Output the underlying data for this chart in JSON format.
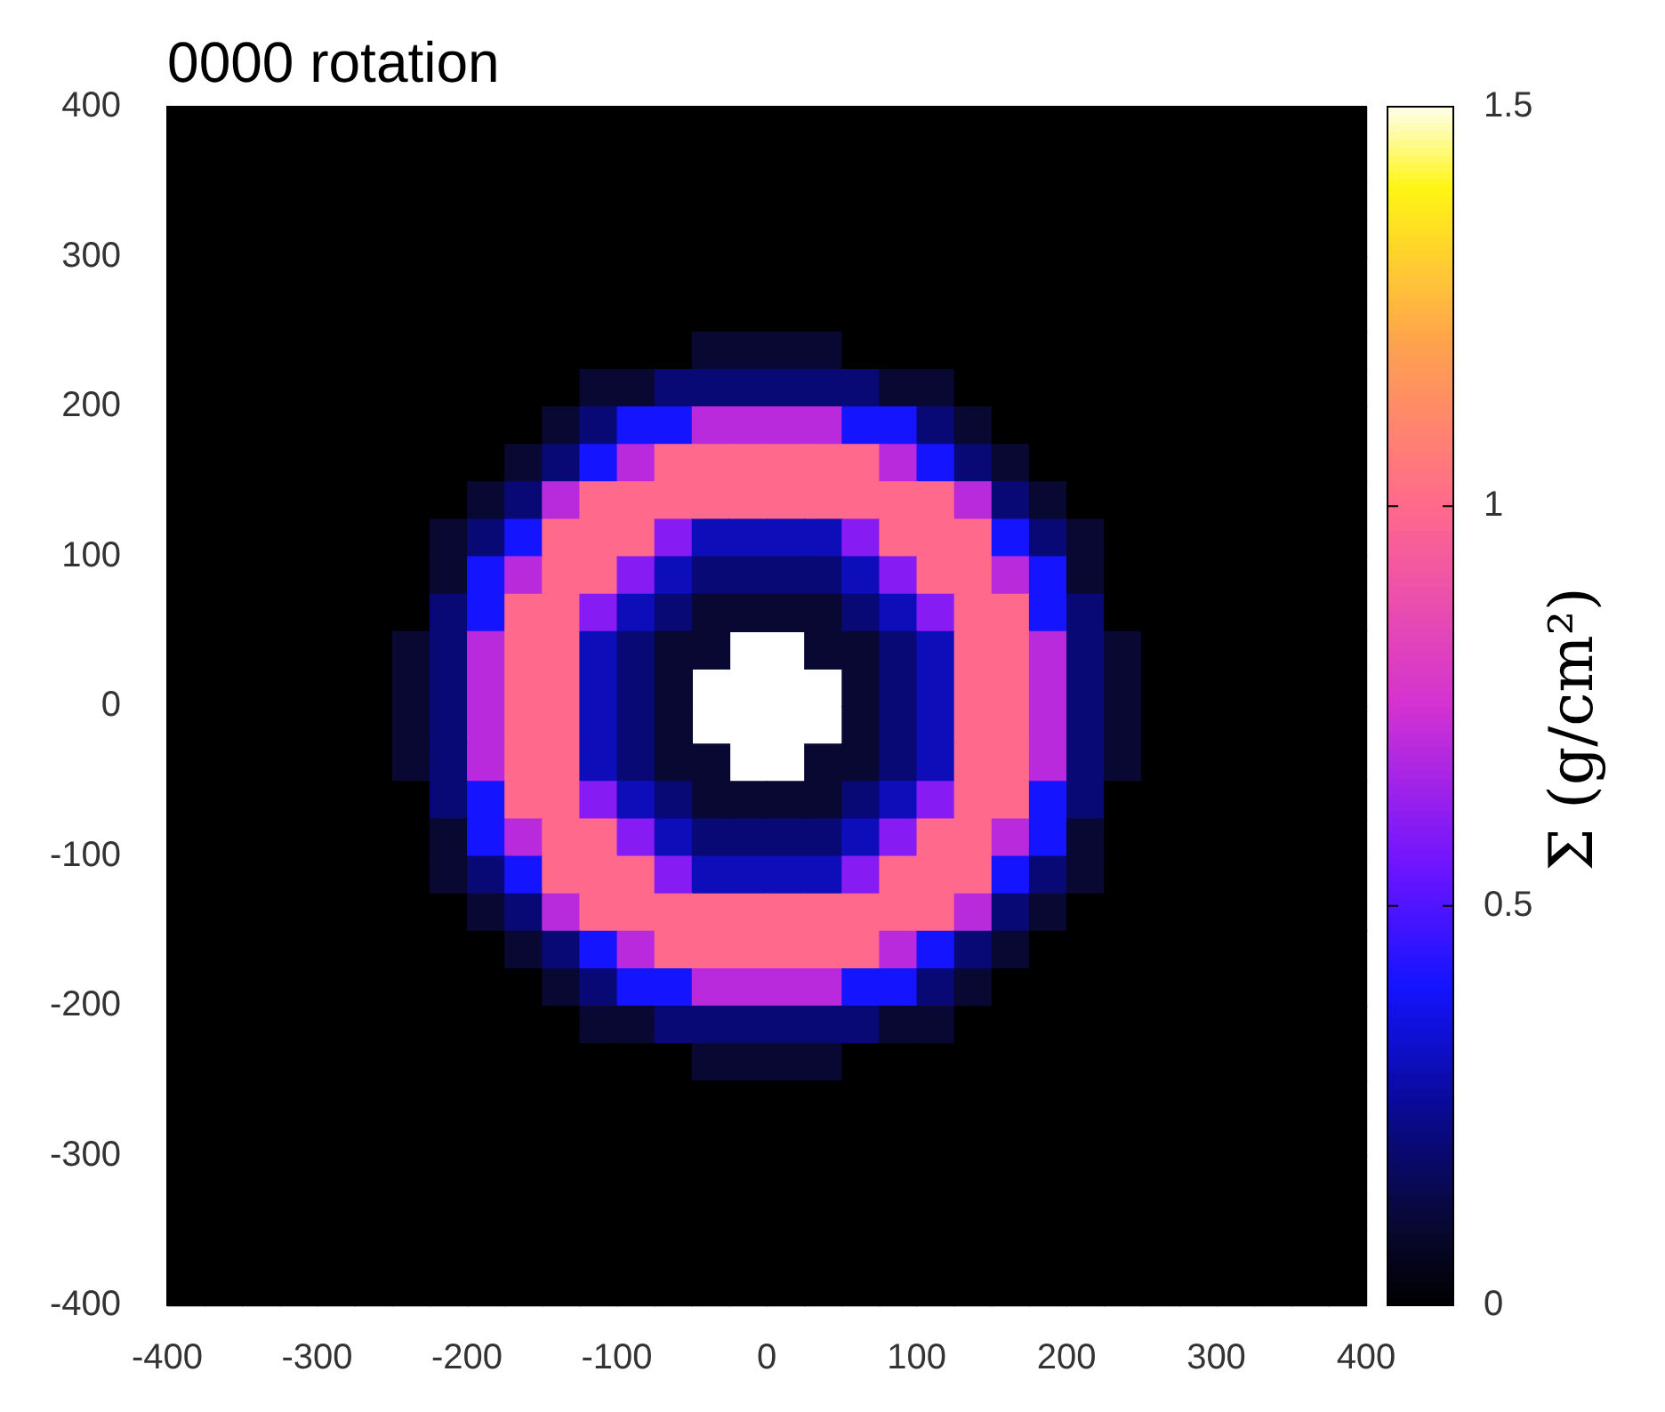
{
  "chart_data": {
    "type": "heatmap",
    "title": "0000 rotation",
    "clabel": "Σ (g/cm²)",
    "x": [
      -387.5,
      -362.5,
      -337.5,
      -312.5,
      -287.5,
      -262.5,
      -237.5,
      -212.5,
      -187.5,
      -162.5,
      -137.5,
      -112.5,
      -87.5,
      -62.5,
      -37.5,
      -12.5,
      12.5,
      37.5,
      62.5,
      87.5,
      112.5,
      137.5,
      162.5,
      187.5,
      212.5,
      237.5,
      262.5,
      287.5,
      312.5,
      337.5,
      362.5,
      387.5
    ],
    "y": [
      387.5,
      362.5,
      337.5,
      312.5,
      287.5,
      262.5,
      237.5,
      212.5,
      187.5,
      162.5,
      137.5,
      112.5,
      87.5,
      62.5,
      37.5,
      12.5,
      -12.5,
      -37.5,
      -62.5,
      -87.5,
      -112.5,
      -137.5,
      -162.5,
      -187.5,
      -212.5,
      -237.5,
      -262.5,
      -287.5,
      -312.5,
      -337.5,
      -362.5,
      -387.5
    ],
    "xlim": [
      -400,
      400
    ],
    "ylim": [
      -400,
      400
    ],
    "xticks": [
      -400,
      -300,
      -200,
      -100,
      0,
      100,
      200,
      300,
      400
    ],
    "yticks": [
      -400,
      -300,
      -200,
      -100,
      0,
      100,
      200,
      300,
      400
    ],
    "clim": [
      0,
      1.5
    ],
    "cticks": [
      0,
      0.5,
      1,
      1.5
    ],
    "cells": [
      [
        0,
        0,
        0,
        0,
        0,
        0,
        0,
        0,
        0,
        0,
        0,
        0,
        0,
        0,
        0,
        0,
        0,
        0,
        0,
        0,
        0,
        0,
        0,
        0,
        0,
        0,
        0,
        0,
        0,
        0,
        0,
        0
      ],
      [
        0,
        0,
        0,
        0,
        0,
        0,
        0,
        0,
        0,
        0,
        0,
        0,
        0,
        0,
        0,
        0,
        0,
        0,
        0,
        0,
        0,
        0,
        0,
        0,
        0,
        0,
        0,
        0,
        0,
        0,
        0,
        0
      ],
      [
        0,
        0,
        0,
        0,
        0,
        0,
        0,
        0,
        0,
        0,
        0,
        0,
        0,
        0,
        0,
        0,
        0,
        0,
        0,
        0,
        0,
        0,
        0,
        0,
        0,
        0,
        0,
        0,
        0,
        0,
        0,
        0
      ],
      [
        0,
        0,
        0,
        0,
        0,
        0,
        0,
        0,
        0,
        0,
        0,
        0,
        0,
        0,
        0,
        0,
        0,
        0,
        0,
        0,
        0,
        0,
        0,
        0,
        0,
        0,
        0,
        0,
        0,
        0,
        0,
        0
      ],
      [
        0,
        0,
        0,
        0,
        0,
        0,
        0,
        0,
        0,
        0,
        0,
        0,
        0,
        0,
        0,
        0,
        0,
        0,
        0,
        0,
        0,
        0,
        0,
        0,
        0,
        0,
        0,
        0,
        0,
        0,
        0,
        0
      ],
      [
        0,
        0,
        0,
        0,
        0,
        0,
        0,
        0,
        0,
        0,
        0,
        0,
        0,
        0,
        0,
        0,
        0,
        0,
        0,
        0,
        0,
        0,
        0,
        0,
        0,
        0,
        0,
        0,
        0,
        0,
        0,
        0
      ],
      [
        0,
        0,
        0,
        0,
        0,
        0,
        0,
        0,
        0,
        0,
        0,
        0,
        0,
        0,
        0.1,
        0.1,
        0.1,
        0.1,
        0,
        0,
        0,
        0,
        0,
        0,
        0,
        0,
        0,
        0,
        0,
        0,
        0,
        0
      ],
      [
        0,
        0,
        0,
        0,
        0,
        0,
        0,
        0,
        0,
        0,
        0,
        0.1,
        0.1,
        0.2,
        0.2,
        0.2,
        0.2,
        0.2,
        0.2,
        0.1,
        0.1,
        0,
        0,
        0,
        0,
        0,
        0,
        0,
        0,
        0,
        0,
        0
      ],
      [
        0,
        0,
        0,
        0,
        0,
        0,
        0,
        0,
        0,
        0,
        0.1,
        0.2,
        0.4,
        0.4,
        0.7,
        0.7,
        0.7,
        0.7,
        0.4,
        0.4,
        0.2,
        0.1,
        0,
        0,
        0,
        0,
        0,
        0,
        0,
        0,
        0,
        0
      ],
      [
        0,
        0,
        0,
        0,
        0,
        0,
        0,
        0,
        0,
        0.1,
        0.2,
        0.4,
        0.7,
        1,
        1,
        1,
        1,
        1,
        1,
        0.7,
        0.4,
        0.2,
        0.1,
        0,
        0,
        0,
        0,
        0,
        0,
        0,
        0,
        0
      ],
      [
        0,
        0,
        0,
        0,
        0,
        0,
        0,
        0,
        0.1,
        0.2,
        0.7,
        1,
        1,
        1,
        1,
        1,
        1,
        1,
        1,
        1,
        1,
        0.7,
        0.2,
        0.1,
        0,
        0,
        0,
        0,
        0,
        0,
        0,
        0
      ],
      [
        0,
        0,
        0,
        0,
        0,
        0,
        0,
        0.1,
        0.2,
        0.4,
        1,
        1,
        1,
        0.6,
        0.3,
        0.3,
        0.3,
        0.3,
        0.6,
        1,
        1,
        1,
        0.4,
        0.2,
        0.1,
        0,
        0,
        0,
        0,
        0,
        0,
        0
      ],
      [
        0,
        0,
        0,
        0,
        0,
        0,
        0,
        0.1,
        0.4,
        0.7,
        1,
        1,
        0.6,
        0.3,
        0.2,
        0.2,
        0.2,
        0.2,
        0.3,
        0.6,
        1,
        1,
        0.7,
        0.4,
        0.1,
        0,
        0,
        0,
        0,
        0,
        0,
        0
      ],
      [
        0,
        0,
        0,
        0,
        0,
        0,
        0,
        0.2,
        0.4,
        1,
        1,
        0.6,
        0.3,
        0.2,
        0.1,
        0.1,
        0.1,
        0.1,
        0.2,
        0.3,
        0.6,
        1,
        1,
        0.4,
        0.2,
        0,
        0,
        0,
        0,
        0,
        0,
        0
      ],
      [
        0,
        0,
        0,
        0,
        0,
        0,
        0.1,
        0.2,
        0.7,
        1,
        1,
        0.3,
        0.2,
        0.1,
        0.1,
        null,
        null,
        0.1,
        0.1,
        0.2,
        0.3,
        1,
        1,
        0.7,
        0.2,
        0.1,
        0,
        0,
        0,
        0,
        0,
        0
      ],
      [
        0,
        0,
        0,
        0,
        0,
        0,
        0.1,
        0.2,
        0.7,
        1,
        1,
        0.3,
        0.2,
        0.1,
        null,
        null,
        null,
        null,
        0.1,
        0.2,
        0.3,
        1,
        1,
        0.7,
        0.2,
        0.1,
        0,
        0,
        0,
        0,
        0,
        0
      ],
      [
        0,
        0,
        0,
        0,
        0,
        0,
        0.1,
        0.2,
        0.7,
        1,
        1,
        0.3,
        0.2,
        0.1,
        null,
        null,
        null,
        null,
        0.1,
        0.2,
        0.3,
        1,
        1,
        0.7,
        0.2,
        0.1,
        0,
        0,
        0,
        0,
        0,
        0
      ],
      [
        0,
        0,
        0,
        0,
        0,
        0,
        0.1,
        0.2,
        0.7,
        1,
        1,
        0.3,
        0.2,
        0.1,
        0.1,
        null,
        null,
        0.1,
        0.1,
        0.2,
        0.3,
        1,
        1,
        0.7,
        0.2,
        0.1,
        0,
        0,
        0,
        0,
        0,
        0
      ],
      [
        0,
        0,
        0,
        0,
        0,
        0,
        0,
        0.2,
        0.4,
        1,
        1,
        0.6,
        0.3,
        0.2,
        0.1,
        0.1,
        0.1,
        0.1,
        0.2,
        0.3,
        0.6,
        1,
        1,
        0.4,
        0.2,
        0,
        0,
        0,
        0,
        0,
        0,
        0
      ],
      [
        0,
        0,
        0,
        0,
        0,
        0,
        0,
        0.1,
        0.4,
        0.7,
        1,
        1,
        0.6,
        0.3,
        0.2,
        0.2,
        0.2,
        0.2,
        0.3,
        0.6,
        1,
        1,
        0.7,
        0.4,
        0.1,
        0,
        0,
        0,
        0,
        0,
        0,
        0
      ],
      [
        0,
        0,
        0,
        0,
        0,
        0,
        0,
        0.1,
        0.2,
        0.4,
        1,
        1,
        1,
        0.6,
        0.3,
        0.3,
        0.3,
        0.3,
        0.6,
        1,
        1,
        1,
        0.4,
        0.2,
        0.1,
        0,
        0,
        0,
        0,
        0,
        0,
        0
      ],
      [
        0,
        0,
        0,
        0,
        0,
        0,
        0,
        0,
        0.1,
        0.2,
        0.7,
        1,
        1,
        1,
        1,
        1,
        1,
        1,
        1,
        1,
        1,
        0.7,
        0.2,
        0.1,
        0,
        0,
        0,
        0,
        0,
        0,
        0,
        0
      ],
      [
        0,
        0,
        0,
        0,
        0,
        0,
        0,
        0,
        0,
        0.1,
        0.2,
        0.4,
        0.7,
        1,
        1,
        1,
        1,
        1,
        1,
        0.7,
        0.4,
        0.2,
        0.1,
        0,
        0,
        0,
        0,
        0,
        0,
        0,
        0,
        0
      ],
      [
        0,
        0,
        0,
        0,
        0,
        0,
        0,
        0,
        0,
        0,
        0.1,
        0.2,
        0.4,
        0.4,
        0.7,
        0.7,
        0.7,
        0.7,
        0.4,
        0.4,
        0.2,
        0.1,
        0,
        0,
        0,
        0,
        0,
        0,
        0,
        0,
        0,
        0
      ],
      [
        0,
        0,
        0,
        0,
        0,
        0,
        0,
        0,
        0,
        0,
        0,
        0.1,
        0.1,
        0.2,
        0.2,
        0.2,
        0.2,
        0.2,
        0.2,
        0.1,
        0.1,
        0,
        0,
        0,
        0,
        0,
        0,
        0,
        0,
        0,
        0,
        0
      ],
      [
        0,
        0,
        0,
        0,
        0,
        0,
        0,
        0,
        0,
        0,
        0,
        0,
        0,
        0,
        0.1,
        0.1,
        0.1,
        0.1,
        0,
        0,
        0,
        0,
        0,
        0,
        0,
        0,
        0,
        0,
        0,
        0,
        0,
        0
      ],
      [
        0,
        0,
        0,
        0,
        0,
        0,
        0,
        0,
        0,
        0,
        0,
        0,
        0,
        0,
        0,
        0,
        0,
        0,
        0,
        0,
        0,
        0,
        0,
        0,
        0,
        0,
        0,
        0,
        0,
        0,
        0,
        0
      ],
      [
        0,
        0,
        0,
        0,
        0,
        0,
        0,
        0,
        0,
        0,
        0,
        0,
        0,
        0,
        0,
        0,
        0,
        0,
        0,
        0,
        0,
        0,
        0,
        0,
        0,
        0,
        0,
        0,
        0,
        0,
        0,
        0
      ],
      [
        0,
        0,
        0,
        0,
        0,
        0,
        0,
        0,
        0,
        0,
        0,
        0,
        0,
        0,
        0,
        0,
        0,
        0,
        0,
        0,
        0,
        0,
        0,
        0,
        0,
        0,
        0,
        0,
        0,
        0,
        0,
        0
      ],
      [
        0,
        0,
        0,
        0,
        0,
        0,
        0,
        0,
        0,
        0,
        0,
        0,
        0,
        0,
        0,
        0,
        0,
        0,
        0,
        0,
        0,
        0,
        0,
        0,
        0,
        0,
        0,
        0,
        0,
        0,
        0,
        0
      ],
      [
        0,
        0,
        0,
        0,
        0,
        0,
        0,
        0,
        0,
        0,
        0,
        0,
        0,
        0,
        0,
        0,
        0,
        0,
        0,
        0,
        0,
        0,
        0,
        0,
        0,
        0,
        0,
        0,
        0,
        0,
        0,
        0
      ],
      [
        0,
        0,
        0,
        0,
        0,
        0,
        0,
        0,
        0,
        0,
        0,
        0,
        0,
        0,
        0,
        0,
        0,
        0,
        0,
        0,
        0,
        0,
        0,
        0,
        0,
        0,
        0,
        0,
        0,
        0,
        0,
        0
      ]
    ]
  }
}
